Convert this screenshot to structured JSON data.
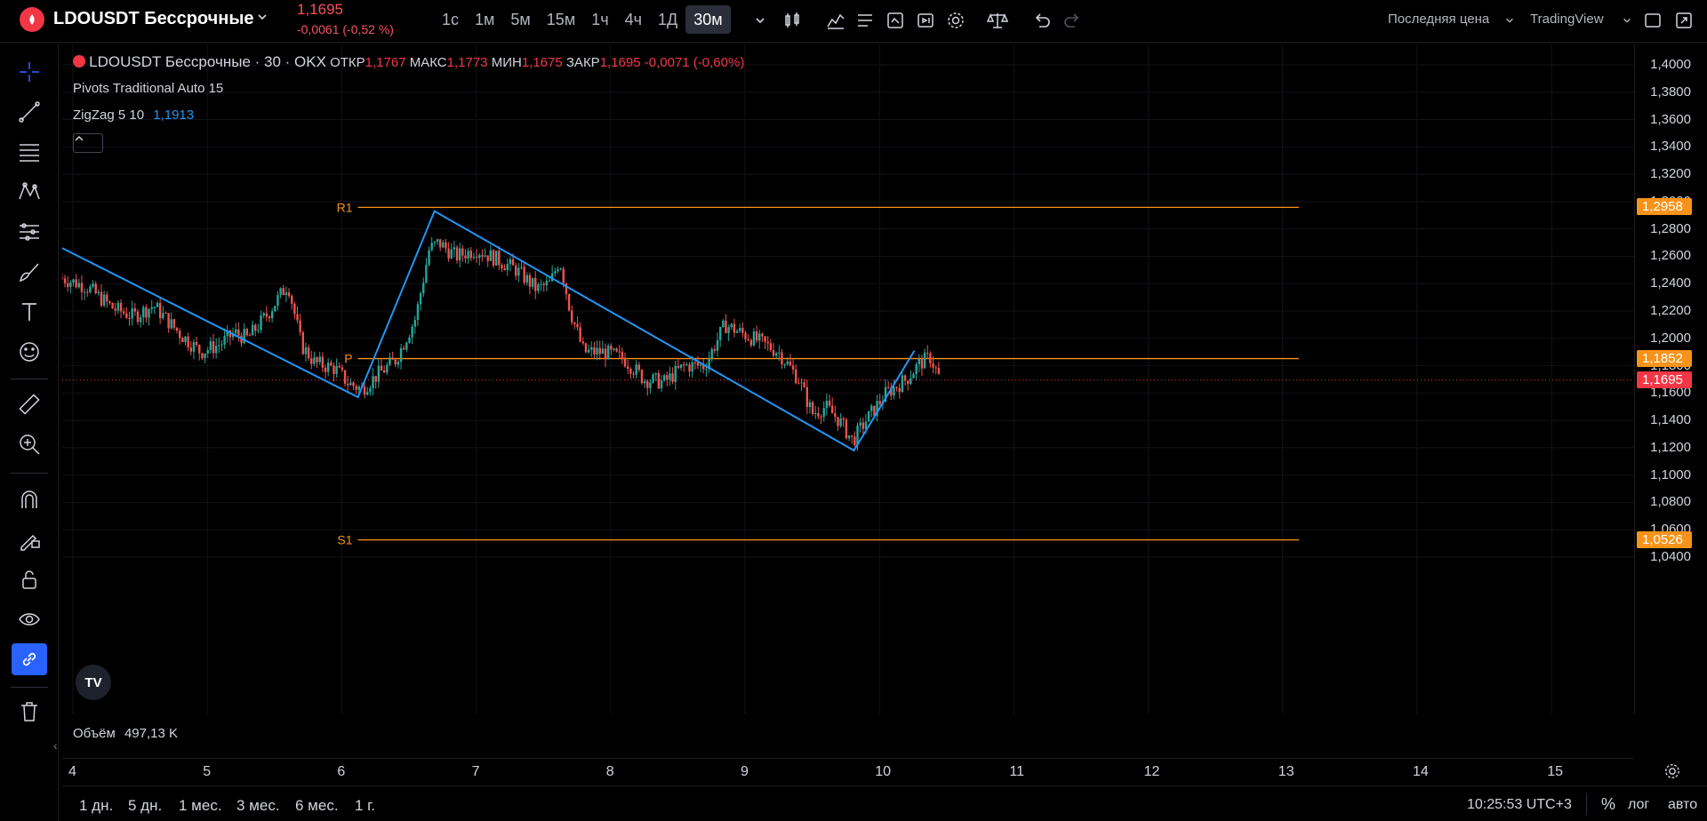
{
  "header": {
    "symbol": "LDOUSDT Бессрочные",
    "last_price": "1,1695",
    "change": "-0,0061 (-0,52 %)",
    "intervals": [
      "1с",
      "1м",
      "5м",
      "15м",
      "1ч",
      "4ч",
      "1Д",
      "30м"
    ],
    "active_interval_index": 7,
    "price_type": "Последняя цена",
    "brand": "TradingView"
  },
  "legend": {
    "title": "LDOUSDT Бессрочные · 30 · OKX",
    "open_label": "ОТКР",
    "open": "1,1767",
    "high_label": "МАКС",
    "high": "1,1773",
    "low_label": "МИН",
    "low": "1,1675",
    "close_label": "ЗАКР",
    "close": "1,1695",
    "change": "-0,0071 (-0,60%)",
    "indicator1": "Pivots Traditional Auto 15",
    "indicator2_name": "ZigZag 5 10",
    "indicator2_value": "1,1913"
  },
  "pivots": {
    "r1_label": "R1",
    "r1": "1,2958",
    "p_label": "P",
    "p": "1,1852",
    "s1_label": "S1",
    "s1": "1,0526"
  },
  "current_price_label": "1,1695",
  "price_scale": [
    "1,4000",
    "1,3800",
    "1,3600",
    "1,3400",
    "1,3200",
    "1,3000",
    "1,2800",
    "1,2600",
    "1,2400",
    "1,2200",
    "1,2000",
    "1,1800",
    "1,1600",
    "1,1400",
    "1,1200",
    "1,1000",
    "1,0800",
    "1,0600",
    "1,0400"
  ],
  "time_scale": [
    "4",
    "5",
    "6",
    "7",
    "8",
    "9",
    "10",
    "11",
    "12",
    "13",
    "14",
    "15"
  ],
  "volume": {
    "label": "Объём",
    "value": "497,13 K"
  },
  "bottom": {
    "ranges": [
      "1 дн.",
      "5 дн.",
      "1 мес.",
      "3 мес.",
      "6 мес.",
      "1 г."
    ],
    "clock": "10:25:53 UTC+3",
    "percent": "%",
    "log": "лог",
    "auto": "авто"
  },
  "colors": {
    "up": "#26a69a",
    "down": "#ef5350",
    "pivot": "#f7931a",
    "zigzag": "#2196f3",
    "current": "#f23645"
  },
  "chart_data": {
    "type": "candlestick",
    "ylim": [
      1.03,
      1.41
    ],
    "zigzag_points": [
      [
        3.92,
        1.266
      ],
      [
        6.12,
        1.157
      ],
      [
        6.69,
        1.293
      ],
      [
        9.81,
        1.118
      ],
      [
        10.26,
        1.191
      ]
    ],
    "pivot_levels": {
      "R1": 1.2958,
      "P": 1.1852,
      "S1": 1.0526
    },
    "close_path": [
      [
        3.92,
        1.244
      ],
      [
        4.1,
        1.238
      ],
      [
        4.3,
        1.222
      ],
      [
        4.45,
        1.216
      ],
      [
        4.6,
        1.224
      ],
      [
        4.8,
        1.203
      ],
      [
        4.95,
        1.19
      ],
      [
        5.1,
        1.196
      ],
      [
        5.2,
        1.204
      ],
      [
        5.3,
        1.2
      ],
      [
        5.45,
        1.218
      ],
      [
        5.6,
        1.24
      ],
      [
        5.7,
        1.195
      ],
      [
        5.8,
        1.182
      ],
      [
        5.95,
        1.178
      ],
      [
        6.05,
        1.167
      ],
      [
        6.15,
        1.163
      ],
      [
        6.25,
        1.172
      ],
      [
        6.4,
        1.184
      ],
      [
        6.55,
        1.215
      ],
      [
        6.65,
        1.265
      ],
      [
        6.72,
        1.27
      ],
      [
        6.85,
        1.26
      ],
      [
        7.0,
        1.265
      ],
      [
        7.15,
        1.258
      ],
      [
        7.3,
        1.25
      ],
      [
        7.45,
        1.236
      ],
      [
        7.55,
        1.24
      ],
      [
        7.62,
        1.258
      ],
      [
        7.7,
        1.22
      ],
      [
        7.8,
        1.19
      ],
      [
        7.95,
        1.19
      ],
      [
        8.1,
        1.185
      ],
      [
        8.25,
        1.17
      ],
      [
        8.4,
        1.168
      ],
      [
        8.55,
        1.18
      ],
      [
        8.7,
        1.18
      ],
      [
        8.85,
        1.21
      ],
      [
        8.95,
        1.205
      ],
      [
        9.1,
        1.198
      ],
      [
        9.25,
        1.19
      ],
      [
        9.4,
        1.17
      ],
      [
        9.5,
        1.145
      ],
      [
        9.6,
        1.15
      ],
      [
        9.7,
        1.14
      ],
      [
        9.8,
        1.125
      ],
      [
        9.9,
        1.14
      ],
      [
        10.05,
        1.16
      ],
      [
        10.2,
        1.17
      ],
      [
        10.3,
        1.182
      ],
      [
        10.38,
        1.186
      ],
      [
        10.45,
        1.17
      ]
    ]
  }
}
